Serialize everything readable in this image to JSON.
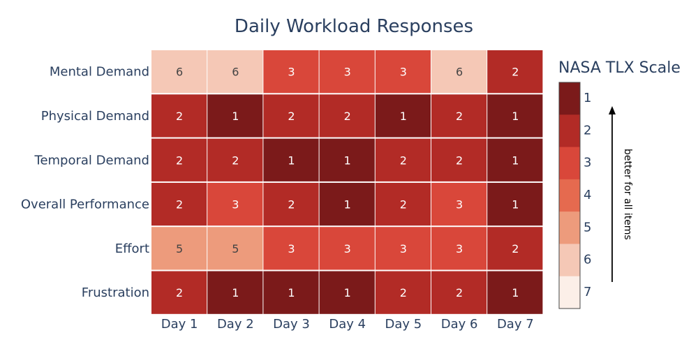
{
  "chart_data": {
    "type": "heatmap",
    "title": "Daily Workload Responses",
    "x": [
      "Day 1",
      "Day 2",
      "Day 3",
      "Day 4",
      "Day 5",
      "Day 6",
      "Day 7"
    ],
    "y": [
      "Mental Demand",
      "Physical Demand",
      "Temporal Demand",
      "Overall Performance",
      "Effort",
      "Frustration"
    ],
    "z": [
      [
        6,
        6,
        3,
        3,
        3,
        6,
        2
      ],
      [
        2,
        1,
        2,
        2,
        1,
        2,
        1
      ],
      [
        2,
        2,
        1,
        1,
        2,
        2,
        1
      ],
      [
        2,
        3,
        2,
        1,
        2,
        3,
        1
      ],
      [
        5,
        5,
        3,
        3,
        3,
        3,
        2
      ],
      [
        2,
        1,
        1,
        1,
        2,
        2,
        1
      ]
    ],
    "colorscale": {
      "1": "#7b1a1a",
      "2": "#b22b26",
      "3": "#d9473a",
      "4": "#e56a4f",
      "5": "#ed9b7c",
      "6": "#f5c8b6",
      "7": "#fcefe8"
    },
    "colorbar": {
      "title": "NASA TLX Scale",
      "ticks": [
        1,
        2,
        3,
        4,
        5,
        6,
        7
      ],
      "annotation": "better for all items",
      "range": [
        1,
        7
      ]
    }
  }
}
